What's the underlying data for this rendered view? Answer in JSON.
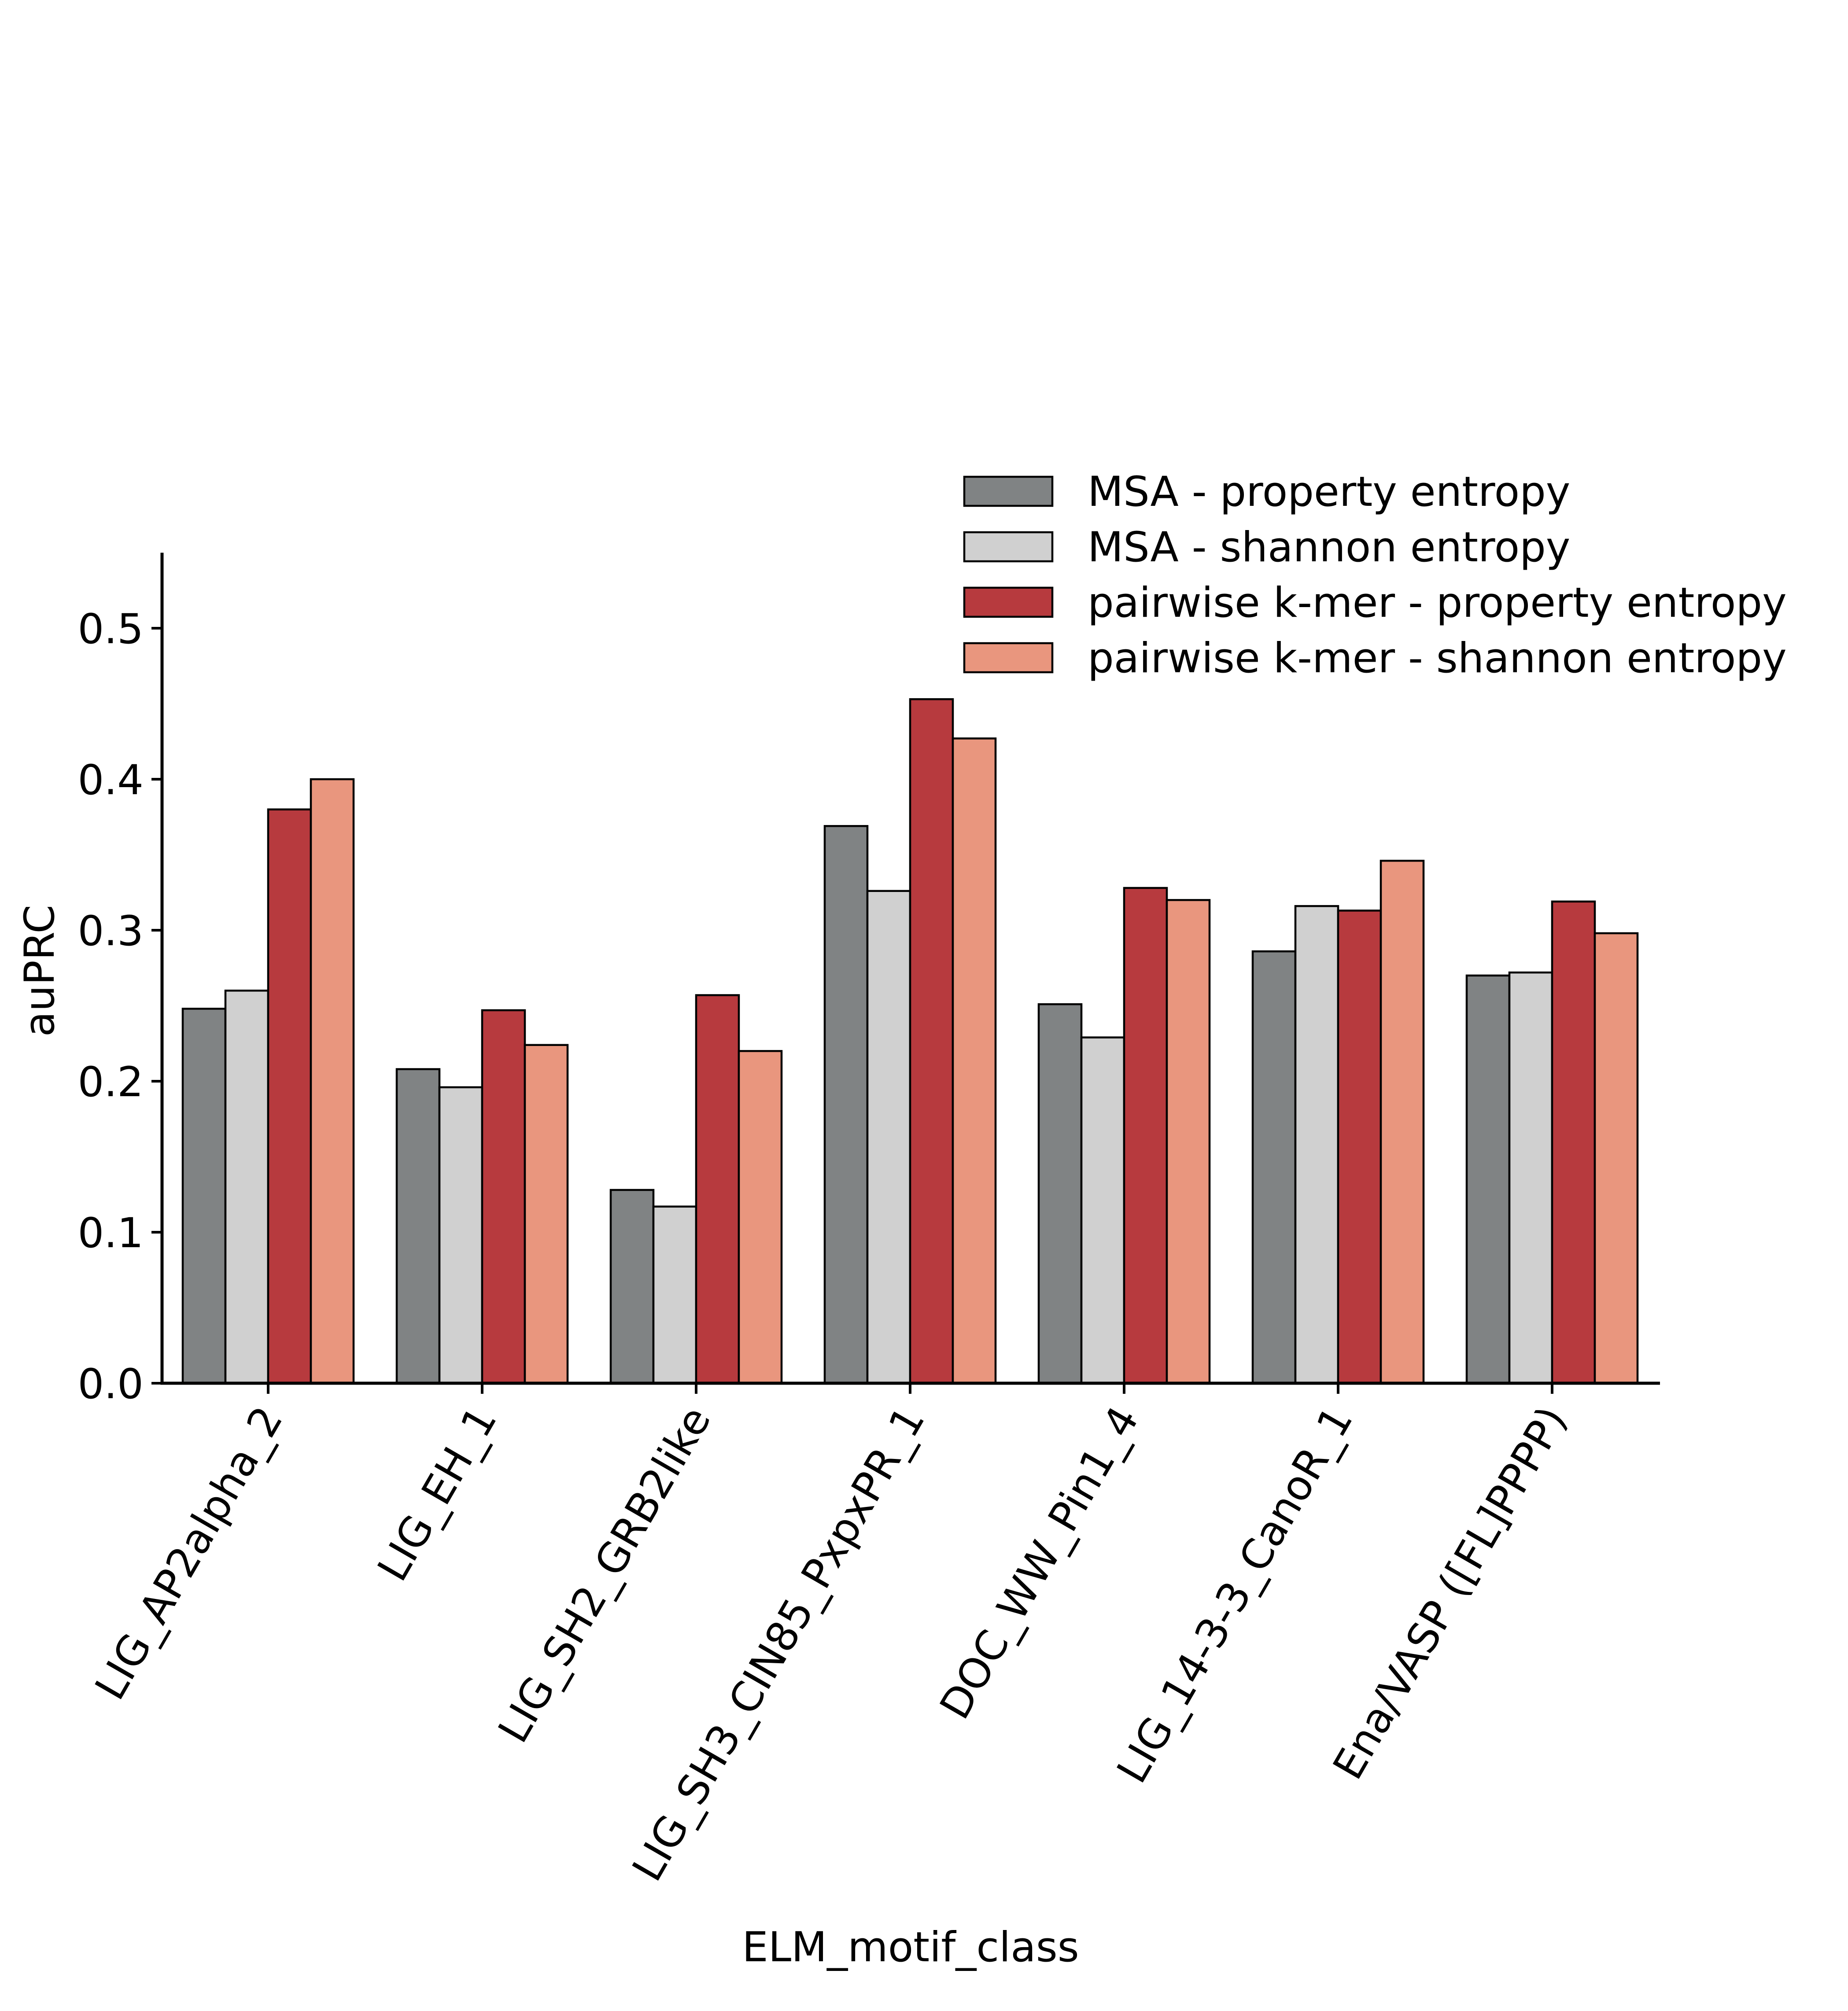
{
  "chart_data": {
    "type": "bar",
    "title": "",
    "xlabel": "ELM_motif_class",
    "ylabel": "auPRC",
    "ylim": [
      0,
      0.55
    ],
    "yticks": [
      0.0,
      0.1,
      0.2,
      0.3,
      0.4,
      0.5
    ],
    "ytick_labels": [
      "0.0",
      "0.1",
      "0.2",
      "0.3",
      "0.4",
      "0.5"
    ],
    "grid": false,
    "legend_position": "top-right",
    "categories": [
      "LIG_AP2alpha_2",
      "LIG_EH_1",
      "LIG_SH2_GRB2like",
      "LIG_SH3_CIN85_PxpxPR_1",
      "DOC_WW_Pin1_4",
      "LIG_14-3-3_CanoR_1",
      "Ena/VASP ([FL]PPPP)"
    ],
    "series": [
      {
        "name": "MSA - property entropy",
        "color": "#808384",
        "values": [
          0.248,
          0.208,
          0.128,
          0.369,
          0.251,
          0.286,
          0.27
        ]
      },
      {
        "name": "MSA - shannon entropy",
        "color": "#d0d0d0",
        "values": [
          0.26,
          0.196,
          0.117,
          0.326,
          0.229,
          0.316,
          0.272
        ]
      },
      {
        "name": "pairwise k-mer - property entropy",
        "color": "#b73a3e",
        "values": [
          0.38,
          0.247,
          0.257,
          0.453,
          0.328,
          0.313,
          0.319
        ]
      },
      {
        "name": "pairwise k-mer - shannon entropy",
        "color": "#e9967e",
        "values": [
          0.4,
          0.224,
          0.22,
          0.427,
          0.32,
          0.346,
          0.298
        ]
      }
    ]
  }
}
